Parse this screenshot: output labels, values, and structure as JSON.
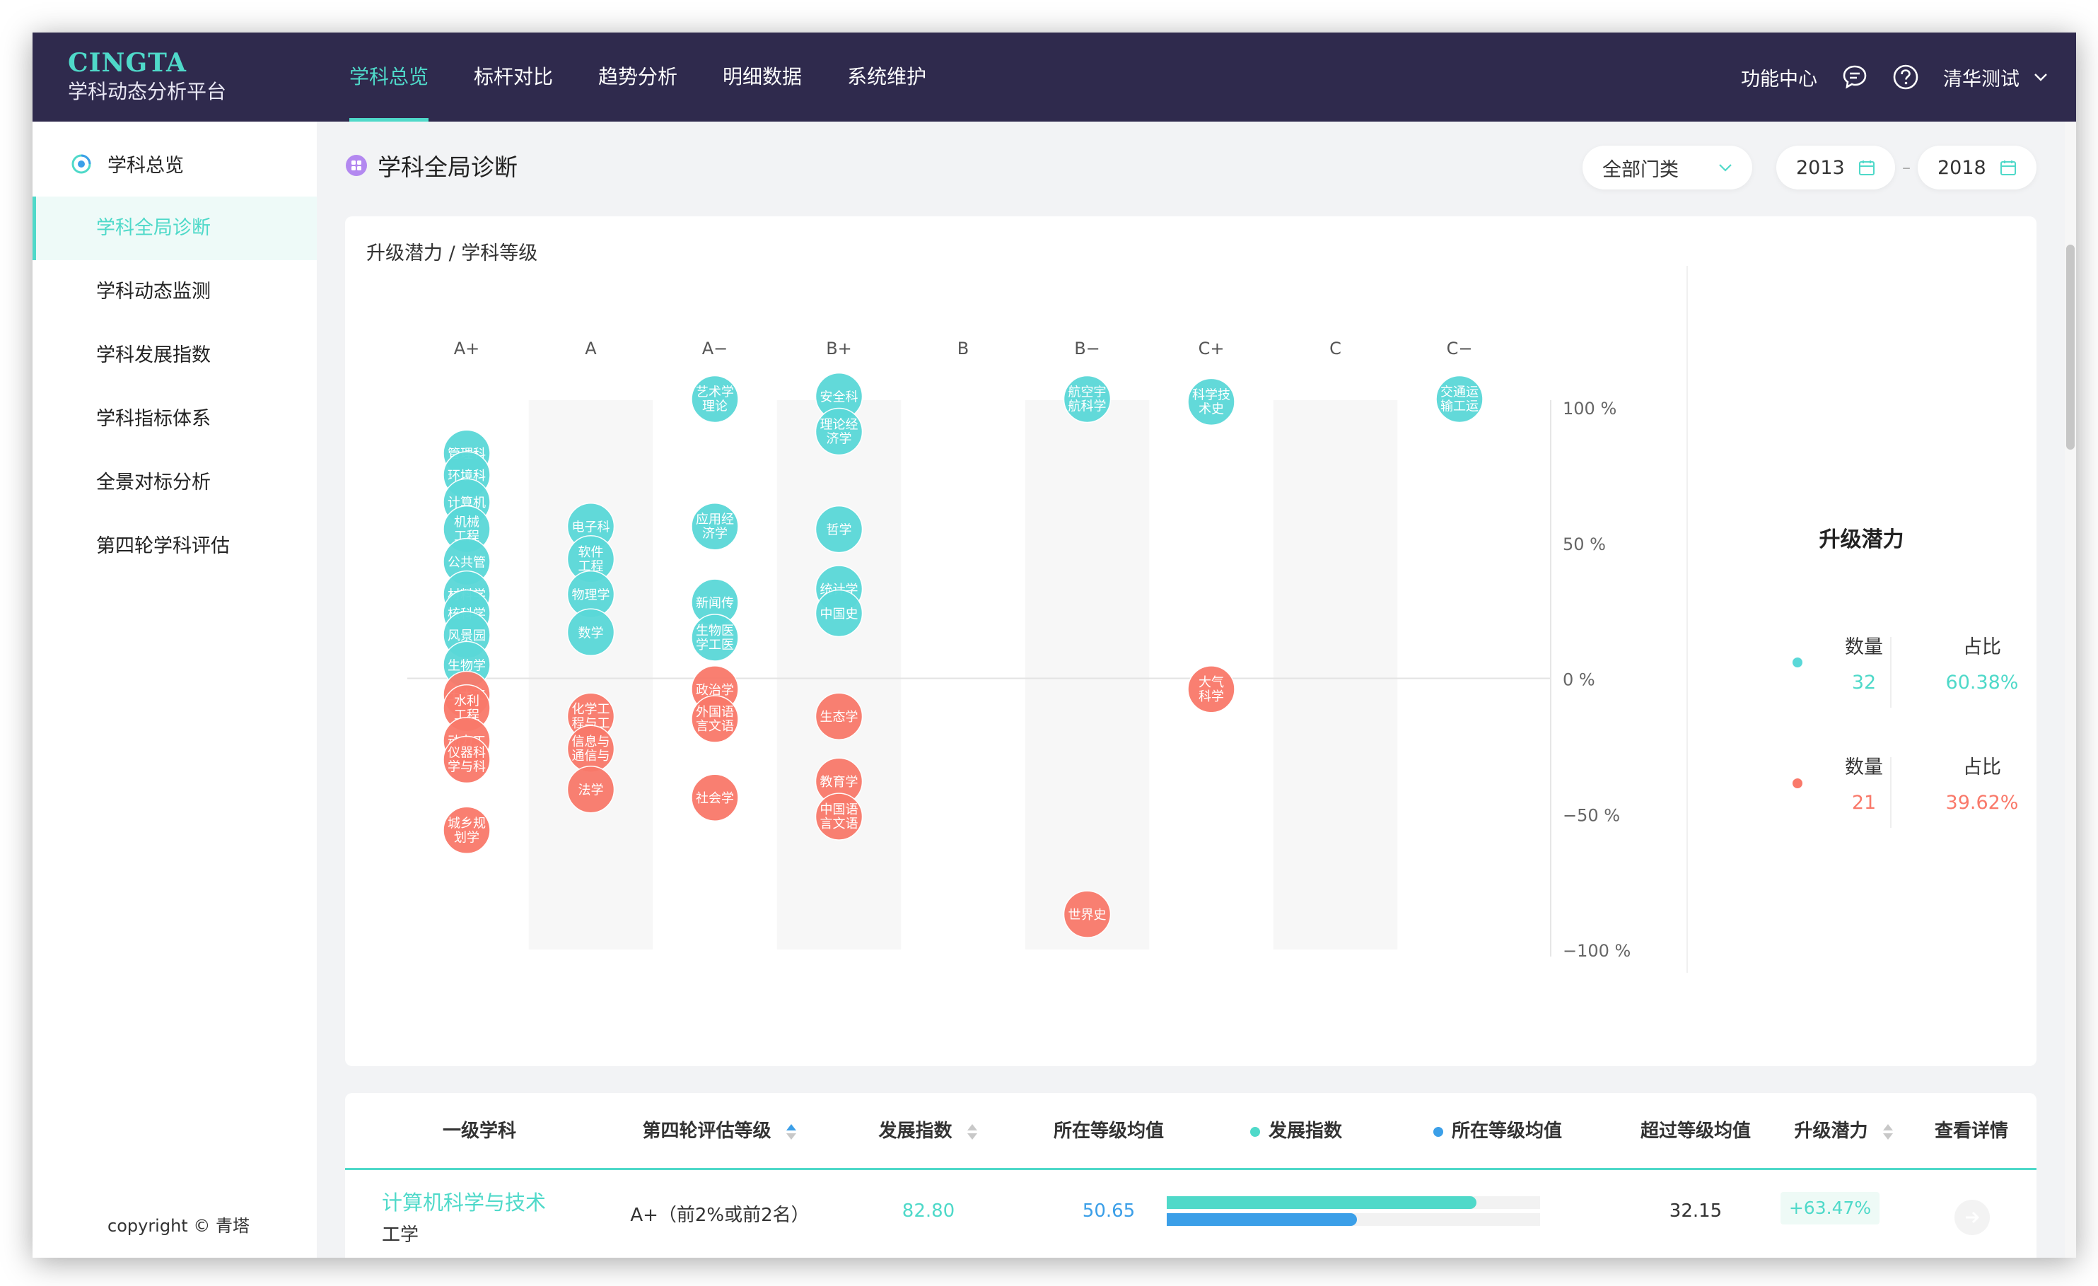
{
  "brand": {
    "logo": "CINGTA",
    "subtitle": "学科动态分析平台"
  },
  "nav": {
    "items": [
      "学科总览",
      "标杆对比",
      "趋势分析",
      "明细数据",
      "系统维护"
    ],
    "active_index": 0
  },
  "header": {
    "func_center": "功能中心",
    "user": "清华测试"
  },
  "sidebar": {
    "head": "学科总览",
    "items": [
      "学科全局诊断",
      "学科动态监测",
      "学科发展指数",
      "学科指标体系",
      "全景对标分析",
      "第四轮学科评估"
    ],
    "active_index": 0,
    "copyright": "copyright © 青塔"
  },
  "page": {
    "title": "学科全局诊断"
  },
  "filters": {
    "category": "全部门类",
    "year_start": "2013",
    "year_end": "2018",
    "separator": "–"
  },
  "chart": {
    "title": "升级潜力 / 学科等级"
  },
  "chart_data": {
    "type": "scatter",
    "title": "升级潜力 / 学科等级",
    "categories": [
      "A+",
      "A",
      "A−",
      "B+",
      "B",
      "B−",
      "C+",
      "C",
      "C−"
    ],
    "y_ticks": [
      "100 %",
      "50 %",
      "0 %",
      "−50 %",
      "−100 %"
    ],
    "ylim": [
      -100,
      100
    ],
    "colors": {
      "positive": "#5ad8d8",
      "negative": "#f9796a"
    },
    "points": [
      {
        "cat": 0,
        "y": 83,
        "label": "管理科"
      },
      {
        "cat": 0,
        "y": 75,
        "label": "环境科"
      },
      {
        "cat": 0,
        "y": 65,
        "label": "计算机"
      },
      {
        "cat": 0,
        "y": 55,
        "label": "机械工程"
      },
      {
        "cat": 0,
        "y": 43,
        "label": "公共管"
      },
      {
        "cat": 0,
        "y": 31,
        "label": "材料学"
      },
      {
        "cat": 0,
        "y": 24,
        "label": "核科学"
      },
      {
        "cat": 0,
        "y": 16,
        "label": "风景园"
      },
      {
        "cat": 0,
        "y": 5,
        "label": "生物学"
      },
      {
        "cat": 0,
        "y": -6,
        "label": "土木工"
      },
      {
        "cat": 0,
        "y": -11,
        "label": "水利工程"
      },
      {
        "cat": 0,
        "y": -23,
        "label": "动力工"
      },
      {
        "cat": 0,
        "y": -30,
        "label": "仪器科学与科"
      },
      {
        "cat": 0,
        "y": -56,
        "label": "城乡规划学"
      },
      {
        "cat": 1,
        "y": 56,
        "label": "电子科"
      },
      {
        "cat": 1,
        "y": 44,
        "label": "软件工程"
      },
      {
        "cat": 1,
        "y": 31,
        "label": "物理学"
      },
      {
        "cat": 1,
        "y": 17,
        "label": "数学"
      },
      {
        "cat": 1,
        "y": -14,
        "label": "化学工程与工"
      },
      {
        "cat": 1,
        "y": -26,
        "label": "信息与通信与"
      },
      {
        "cat": 1,
        "y": -41,
        "label": "法学"
      },
      {
        "cat": 2,
        "y": 103,
        "label": "艺术学理论"
      },
      {
        "cat": 2,
        "y": 56,
        "label": "应用经济学"
      },
      {
        "cat": 2,
        "y": 28,
        "label": "新闻传"
      },
      {
        "cat": 2,
        "y": 15,
        "label": "生物医学工医"
      },
      {
        "cat": 2,
        "y": -4,
        "label": "政治学"
      },
      {
        "cat": 2,
        "y": -15,
        "label": "外国语言文语"
      },
      {
        "cat": 2,
        "y": -44,
        "label": "社会学"
      },
      {
        "cat": 3,
        "y": 104,
        "label": "安全科"
      },
      {
        "cat": 3,
        "y": 91,
        "label": "理论经济学"
      },
      {
        "cat": 3,
        "y": 55,
        "label": "哲学"
      },
      {
        "cat": 3,
        "y": 33,
        "label": "统计学"
      },
      {
        "cat": 3,
        "y": 24,
        "label": "中国史"
      },
      {
        "cat": 3,
        "y": -14,
        "label": "生态学"
      },
      {
        "cat": 3,
        "y": -38,
        "label": "教育学"
      },
      {
        "cat": 3,
        "y": -51,
        "label": "中国语言文语"
      },
      {
        "cat": 5,
        "y": 103,
        "label": "航空宇航科学"
      },
      {
        "cat": 5,
        "y": -87,
        "label": "世界史"
      },
      {
        "cat": 6,
        "y": 102,
        "label": "科学技术史"
      },
      {
        "cat": 6,
        "y": -4,
        "label": "大气科学"
      },
      {
        "cat": 8,
        "y": 103,
        "label": "交通运输工运"
      }
    ]
  },
  "potential": {
    "title": "升级潜力",
    "positive": {
      "count_label": "数量",
      "count": "32",
      "ratio_label": "占比",
      "ratio": "60.38%"
    },
    "negative": {
      "count_label": "数量",
      "count": "21",
      "ratio_label": "占比",
      "ratio": "39.62%"
    }
  },
  "table": {
    "headers": [
      "一级学科",
      "第四轮评估等级",
      "发展指数",
      "所在等级均值",
      "发展指数",
      "所在等级均值",
      "超过等级均值",
      "升级潜力",
      "查看详情"
    ],
    "rows": [
      {
        "name": "计算机科学与技术",
        "category": "工学",
        "grade": "A+（前2%或前2名）",
        "index": "82.80",
        "grade_avg": "50.65",
        "bar_index": 0.83,
        "bar_avg": 0.51,
        "exceed": "32.15",
        "potential": "+63.47%"
      }
    ]
  }
}
